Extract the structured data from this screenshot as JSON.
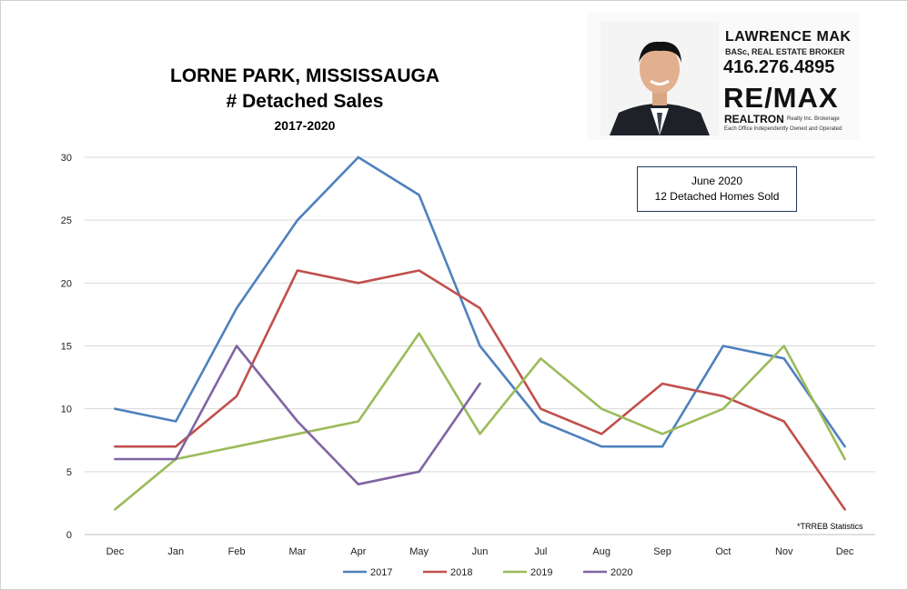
{
  "header": {
    "title_line1": "LORNE PARK, MISSISSAUGA",
    "title_line2": "# Detached Sales",
    "title_line3": "2017-2020"
  },
  "agent": {
    "name": "LAWRENCE MAK",
    "credentials": "BASc, REAL ESTATE BROKER",
    "phone": "416.276.4895",
    "brand": "RE/MAX",
    "brokerage": "REALTRON",
    "brokerage_detail": "Realty Inc. Brokerage",
    "tagline": "Each Office Independently Owned and Operated"
  },
  "annotation": {
    "line1": "June 2020",
    "line2": "12 Detached Homes Sold"
  },
  "source_note": "*TRREB Statistics",
  "colors": {
    "2017": "#4f81bd",
    "2018": "#c0504d",
    "2019": "#9bbb59",
    "2020": "#8064a2",
    "grid": "#d9d9d9"
  },
  "chart_data": {
    "type": "line",
    "title": "LORNE PARK, MISSISSAUGA # Detached Sales",
    "subtitle": "2017-2020",
    "categories": [
      "Dec",
      "Jan",
      "Feb",
      "Mar",
      "Apr",
      "May",
      "Jun",
      "Jul",
      "Aug",
      "Sep",
      "Oct",
      "Nov",
      "Dec"
    ],
    "yticks": [
      "0",
      "5",
      "10",
      "15",
      "20",
      "25",
      "30"
    ],
    "ylim": [
      0,
      30
    ],
    "grid": true,
    "legend_position": "bottom",
    "series": [
      {
        "name": "2017",
        "values": [
          10,
          9,
          18,
          25,
          30,
          27,
          15,
          9,
          7,
          7,
          15,
          14,
          7
        ]
      },
      {
        "name": "2018",
        "values": [
          7,
          7,
          11,
          21,
          20,
          21,
          18,
          10,
          8,
          12,
          11,
          9,
          2
        ]
      },
      {
        "name": "2019",
        "values": [
          2,
          6,
          7,
          8,
          9,
          16,
          8,
          14,
          10,
          8,
          10,
          15,
          6
        ]
      },
      {
        "name": "2020",
        "values": [
          6,
          6,
          15,
          9,
          4,
          5,
          12,
          null,
          null,
          null,
          null,
          null,
          null
        ]
      }
    ]
  }
}
